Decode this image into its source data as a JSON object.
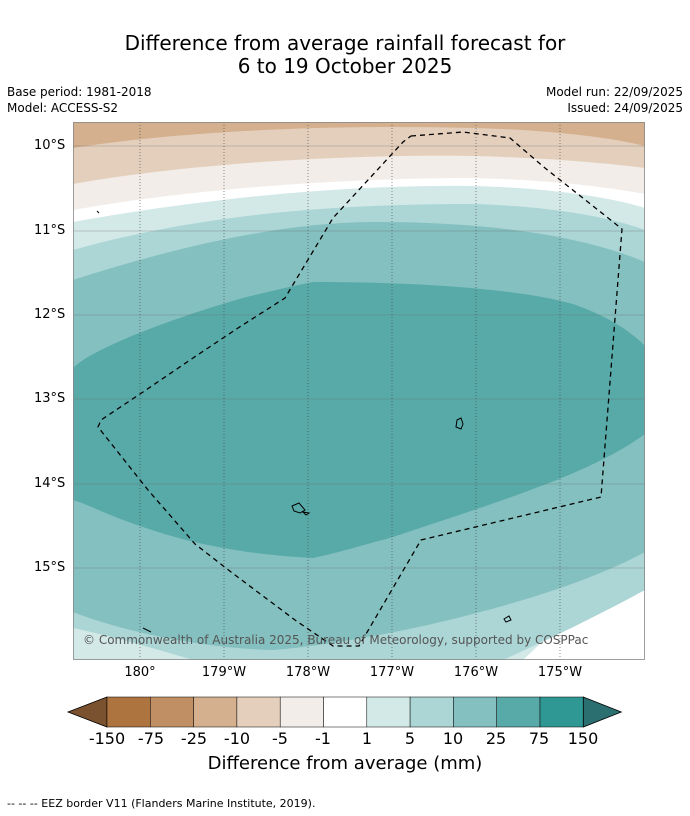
{
  "title_line1": "Difference from average rainfall forecast for",
  "title_line2": "6 to 19 October 2025",
  "meta": {
    "base_period": "Base period: 1981-2018",
    "model": "Model: ACCESS-S2",
    "model_run": "Model run: 22/09/2025",
    "issued": "Issued: 24/09/2025"
  },
  "map": {
    "lat_labels": [
      "10°S",
      "11°S",
      "12°S",
      "13°S",
      "14°S",
      "15°S"
    ],
    "lon_labels": [
      "180°",
      "179°W",
      "178°W",
      "177°W",
      "176°W",
      "175°W"
    ],
    "credit": "© Commonwealth of Australia 2025, Bureau of Meteorology, supported by COSPPac"
  },
  "colorbar": {
    "ticks": [
      "-150",
      "-75",
      "-25",
      "-10",
      "-5",
      "-1",
      "1",
      "5",
      "10",
      "25",
      "75",
      "150"
    ],
    "colors": [
      "#7a5230",
      "#ad7440",
      "#c09064",
      "#d4b08e",
      "#e4cfbc",
      "#f2ede8",
      "#ffffff",
      "#d3e9e8",
      "#acd5d5",
      "#84c0bf",
      "#58aaa9",
      "#2f9894",
      "#2c6f70"
    ],
    "title": "Difference from average (mm)"
  },
  "legend": "--  --  -- EEZ border V11 (Flanders Marine Institute, 2019)."
}
